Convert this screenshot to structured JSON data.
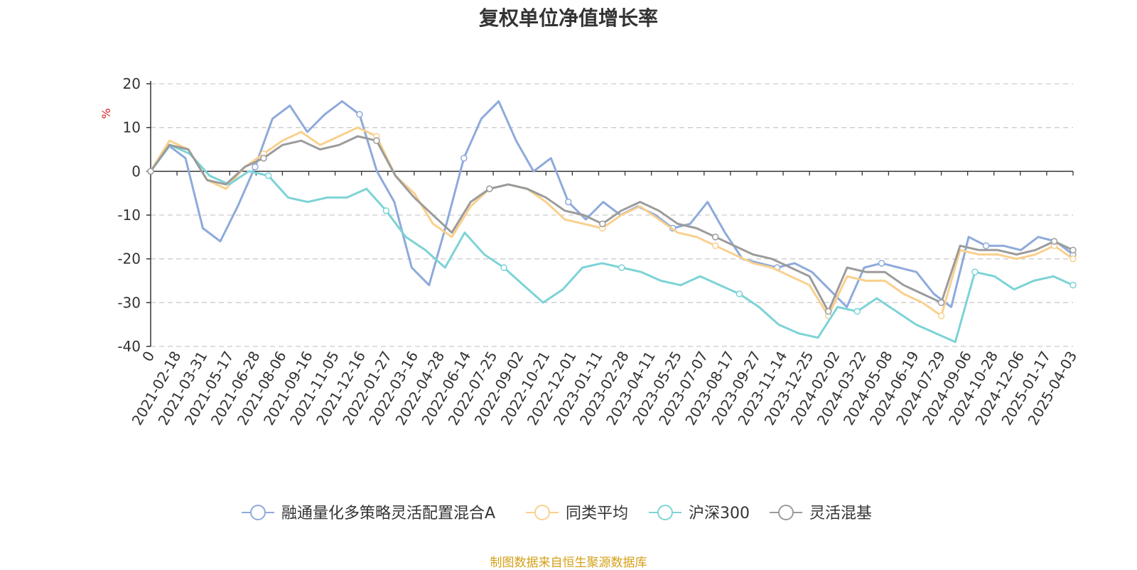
{
  "chart_data": {
    "type": "line",
    "title": "复权单位净值增长率",
    "ylabel": "%",
    "ylim": [
      -40,
      20
    ],
    "yticks": [
      20,
      10,
      0,
      -10,
      -20,
      -30,
      -40
    ],
    "xlabel": "",
    "x_tick_labels": [
      "0",
      "2021-02-18",
      "2021-03-31",
      "2021-05-17",
      "2021-06-28",
      "2021-08-06",
      "2021-09-16",
      "2021-11-05",
      "2021-12-16",
      "2022-01-27",
      "2022-03-16",
      "2022-04-28",
      "2022-06-14",
      "2022-07-25",
      "2022-09-02",
      "2022-10-21",
      "2022-12-01",
      "2023-01-11",
      "2023-02-28",
      "2023-04-11",
      "2023-05-25",
      "2023-07-07",
      "2023-08-17",
      "2023-09-27",
      "2023-11-14",
      "2023-12-25",
      "2024-02-02",
      "2024-03-22",
      "2024-05-08",
      "2024-06-19",
      "2024-07-29",
      "2024-09-06",
      "2024-10-28",
      "2024-12-06",
      "2025-01-17",
      "2025-04-03"
    ],
    "grid": "horizontal-dashed",
    "legend_position": "bottom",
    "series": [
      {
        "name": "融通量化多策略灵活配置混合A",
        "color": "#8eaadb",
        "values": [
          0,
          6,
          3,
          -13,
          -16,
          -8,
          1,
          12,
          15,
          9,
          13,
          16,
          13,
          0,
          -7,
          -22,
          -26,
          -12,
          3,
          12,
          16,
          7,
          0,
          3,
          -7,
          -11,
          -7,
          -10,
          -8,
          -10,
          -13,
          -12,
          -7,
          -14,
          -20,
          -21,
          -22,
          -21,
          -23,
          -27,
          -31,
          -22,
          -21,
          -22,
          -23,
          -28,
          -31,
          -15,
          -17,
          -17,
          -18,
          -15,
          -16,
          -19
        ]
      },
      {
        "name": "同类平均",
        "color": "#f9d08d",
        "values": [
          0,
          7,
          5,
          -2,
          -4,
          1,
          4,
          7,
          9,
          6,
          8,
          10,
          8,
          -1,
          -5,
          -12,
          -15,
          -8,
          -4,
          -3,
          -4,
          -7,
          -11,
          -12,
          -13,
          -10,
          -8,
          -11,
          -14,
          -15,
          -17,
          -19,
          -21,
          -22,
          -24,
          -26,
          -33,
          -24,
          -25,
          -25,
          -28,
          -30,
          -33,
          -18,
          -19,
          -19,
          -20,
          -19,
          -17,
          -20
        ]
      },
      {
        "name": "沪深300",
        "color": "#7dd3d6",
        "values": [
          0,
          6,
          4,
          -1,
          -3,
          0,
          -1,
          -6,
          -7,
          -6,
          -6,
          -4,
          -9,
          -15,
          -18,
          -22,
          -14,
          -19,
          -22,
          -26,
          -30,
          -27,
          -22,
          -21,
          -22,
          -23,
          -25,
          -26,
          -24,
          -26,
          -28,
          -31,
          -35,
          -37,
          -38,
          -31,
          -32,
          -29,
          -32,
          -35,
          -37,
          -39,
          -23,
          -24,
          -27,
          -25,
          -24,
          -26
        ]
      },
      {
        "name": "灵活混基",
        "color": "#9b9b9b",
        "values": [
          0,
          6,
          5,
          -2,
          -3,
          1,
          3,
          6,
          7,
          5,
          6,
          8,
          7,
          -1,
          -6,
          -10,
          -14,
          -7,
          -4,
          -3,
          -4,
          -6,
          -9,
          -10,
          -12,
          -9,
          -7,
          -9,
          -12,
          -13,
          -15,
          -17,
          -19,
          -20,
          -22,
          -24,
          -32,
          -22,
          -23,
          -23,
          -26,
          -28,
          -30,
          -17,
          -18,
          -18,
          -19,
          -18,
          -16,
          -18
        ]
      }
    ]
  },
  "source_note": "制图数据来自恒生聚源数据库"
}
